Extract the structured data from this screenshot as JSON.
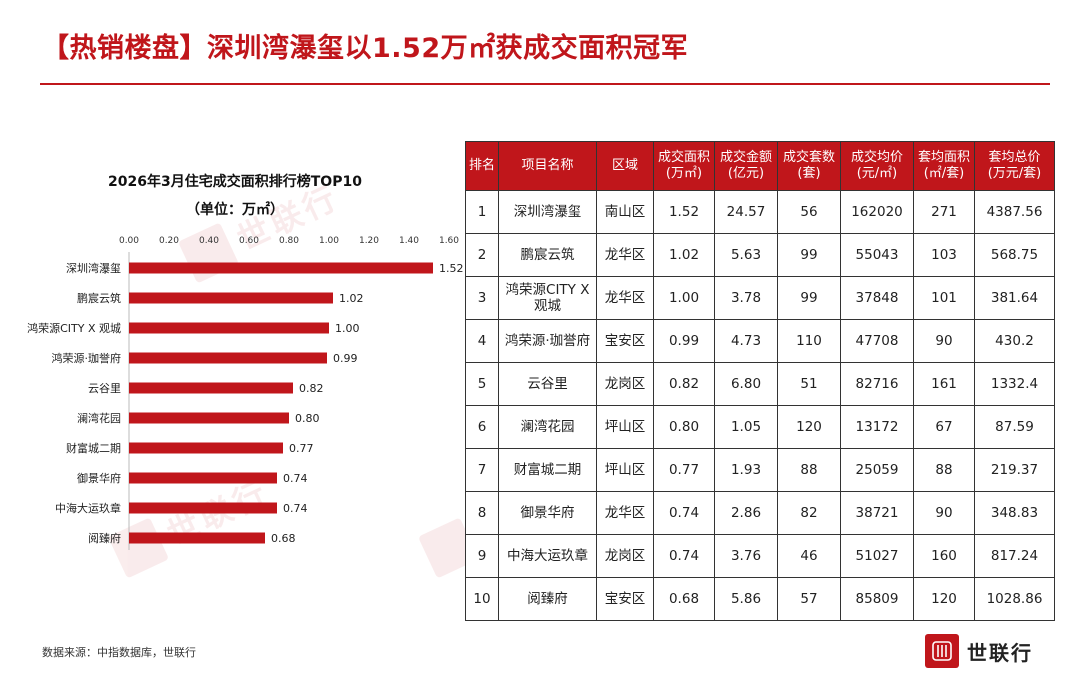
{
  "title": "【热销楼盘】深圳湾瀑玺以1.52万㎡获成交面积冠军",
  "colors": {
    "brand_red": "#c0161b",
    "bar": "#c0161b"
  },
  "chart_data": {
    "type": "bar",
    "orientation": "horizontal",
    "title": "2026年3月住宅成交面积排行榜TOP10",
    "subtitle": "（单位：万㎡）",
    "categories": [
      "深圳湾瀑玺",
      "鹏宸云筑",
      "鸿荣源CITY X 观城",
      "鸿荣源·珈誉府",
      "云谷里",
      "澜湾花园",
      "财富城二期",
      "御景华府",
      "中海大运玖章",
      "阅臻府"
    ],
    "values": [
      1.52,
      1.02,
      1.0,
      0.99,
      0.82,
      0.8,
      0.77,
      0.74,
      0.74,
      0.68
    ],
    "value_labels": [
      "1.52",
      "1.02",
      "1.00",
      "0.99",
      "0.82",
      "0.80",
      "0.77",
      "0.74",
      "0.74",
      "0.68"
    ],
    "xlim": [
      0,
      1.6
    ],
    "x_ticks": [
      "0.00",
      "0.20",
      "0.40",
      "0.60",
      "0.80",
      "1.00",
      "1.20",
      "1.40",
      "1.60"
    ],
    "axis_position": "top",
    "grid": false
  },
  "table": {
    "headers": [
      "排名",
      "项目名称",
      "区域",
      "成交面积\n(万㎡)",
      "成交金额\n(亿元)",
      "成交套数\n(套)",
      "成交均价\n(元/㎡)",
      "套均面积\n(㎡/套)",
      "套均总价\n(万元/套)"
    ],
    "rows": [
      [
        "1",
        "深圳湾瀑玺",
        "南山区",
        "1.52",
        "24.57",
        "56",
        "162020",
        "271",
        "4387.56"
      ],
      [
        "2",
        "鹏宸云筑",
        "龙华区",
        "1.02",
        "5.63",
        "99",
        "55043",
        "103",
        "568.75"
      ],
      [
        "3",
        "鸿荣源CITY X 观城",
        "龙华区",
        "1.00",
        "3.78",
        "99",
        "37848",
        "101",
        "381.64"
      ],
      [
        "4",
        "鸿荣源·珈誉府",
        "宝安区",
        "0.99",
        "4.73",
        "110",
        "47708",
        "90",
        "430.2"
      ],
      [
        "5",
        "云谷里",
        "龙岗区",
        "0.82",
        "6.80",
        "51",
        "82716",
        "161",
        "1332.4"
      ],
      [
        "6",
        "澜湾花园",
        "坪山区",
        "0.80",
        "1.05",
        "120",
        "13172",
        "67",
        "87.59"
      ],
      [
        "7",
        "财富城二期",
        "坪山区",
        "0.77",
        "1.93",
        "88",
        "25059",
        "88",
        "219.37"
      ],
      [
        "8",
        "御景华府",
        "龙华区",
        "0.74",
        "2.86",
        "82",
        "38721",
        "90",
        "348.83"
      ],
      [
        "9",
        "中海大运玖章",
        "龙岗区",
        "0.74",
        "3.76",
        "46",
        "51027",
        "160",
        "817.24"
      ],
      [
        "10",
        "阅臻府",
        "宝安区",
        "0.68",
        "5.86",
        "57",
        "85809",
        "120",
        "1028.86"
      ]
    ]
  },
  "source": "数据来源：中指数据库，世联行",
  "logo": {
    "text": "世联行",
    "icon": "shilianhang-logo-icon"
  }
}
